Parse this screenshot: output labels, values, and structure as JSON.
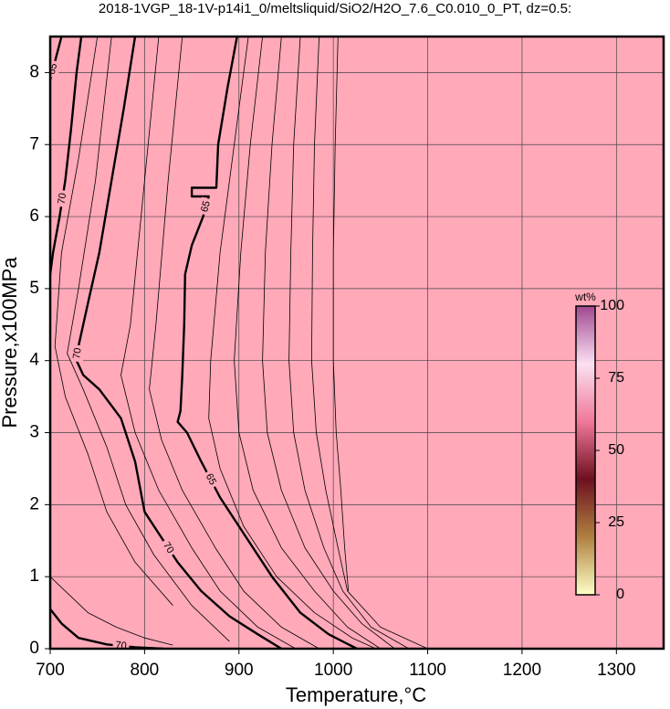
{
  "chart_data": {
    "type": "contour",
    "title": "2018-1VGP_18-1V-p14i1_0/meltsliquid/SiO2/H2O_7.6_C0.010_0_PT, dz=0.5:",
    "x_label": "Temperature,°C",
    "y_label": "Pressure,x100MPa",
    "xlim": [
      700,
      1350
    ],
    "ylim": [
      0,
      8.5
    ],
    "xticks": [
      700,
      800,
      900,
      1000,
      1100,
      1200,
      1300
    ],
    "yticks": [
      0,
      1,
      2,
      3,
      4,
      5,
      6,
      7,
      8
    ],
    "grid": true,
    "fill_color": "#ffa9b9",
    "series": [
      {
        "name": "70",
        "color": "#000000",
        "width": 2.4,
        "x": [
          790,
          778,
          765,
          752,
          740,
          730,
          728,
          735,
          752,
          775,
          790,
          800,
          815,
          835,
          860,
          890,
          920,
          945
        ],
        "y": [
          8.5,
          7.5,
          6.5,
          5.5,
          4.8,
          4.2,
          4.0,
          3.8,
          3.6,
          3.2,
          2.6,
          1.9,
          1.6,
          1.2,
          0.8,
          0.45,
          0.2,
          0
        ]
      },
      {
        "name": "65",
        "color": "#000000",
        "width": 2.4,
        "x": [
          898,
          888,
          878,
          876,
          850,
          850,
          868,
          862,
          850,
          843,
          842,
          840,
          838,
          835,
          845,
          860,
          880,
          905,
          935,
          965,
          995,
          1025
        ],
        "y": [
          8.5,
          7.8,
          7.0,
          6.4,
          6.4,
          6.28,
          6.28,
          6.0,
          5.6,
          5.2,
          4.5,
          3.8,
          3.3,
          3.15,
          3.0,
          2.6,
          2.1,
          1.6,
          1.0,
          0.5,
          0.2,
          0
        ]
      },
      {
        "name": "70",
        "color": "#000000",
        "width": 2.4,
        "x": [
          733,
          728,
          722,
          716,
          710,
          703,
          700
        ],
        "y": [
          8.5,
          8.0,
          7.2,
          6.5,
          6.0,
          5.5,
          5.2
        ]
      },
      {
        "name": "65",
        "color": "#000000",
        "width": 2.4,
        "x": [
          712,
          706,
          700
        ],
        "y": [
          8.5,
          8.2,
          7.9
        ]
      },
      {
        "name": "70",
        "color": "#000000",
        "width": 2.4,
        "x": [
          700,
          712,
          730,
          760,
          790,
          820
        ],
        "y": [
          0.55,
          0.35,
          0.15,
          0.06,
          0.02,
          0
        ]
      },
      {
        "color": "#000000",
        "width": 0.8,
        "x": [
          815,
          800,
          785,
          775,
          790,
          815,
          850,
          880,
          920,
          960
        ],
        "y": [
          8.5,
          6.5,
          4.5,
          3.8,
          3.0,
          2.2,
          1.4,
          0.8,
          0.3,
          0
        ]
      },
      {
        "color": "#000000",
        "width": 0.8,
        "x": [
          840,
          825,
          812,
          805,
          818,
          840,
          875,
          905,
          945,
          985
        ],
        "y": [
          8.5,
          6.5,
          4.5,
          3.6,
          2.9,
          2.2,
          1.4,
          0.8,
          0.3,
          0
        ]
      },
      {
        "color": "#000000",
        "width": 0.8,
        "x": [
          765,
          748,
          730,
          718,
          735,
          760,
          780,
          810,
          850,
          890
        ],
        "y": [
          8.5,
          6.5,
          5,
          4.1,
          3.6,
          2.8,
          2.0,
          1.3,
          0.6,
          0.1
        ]
      },
      {
        "color": "#000000",
        "width": 0.8,
        "x": [
          750,
          730,
          712,
          705,
          716,
          740,
          760,
          790,
          830
        ],
        "y": [
          8.5,
          6.8,
          5.5,
          4.2,
          3.5,
          2.7,
          1.9,
          1.2,
          0.6
        ]
      },
      {
        "color": "#000000",
        "width": 0.8,
        "x": [
          910,
          895,
          880,
          870,
          868,
          880,
          905,
          940,
          980,
          1020,
          1045
        ],
        "y": [
          8.5,
          7,
          5.5,
          4,
          3.2,
          2.5,
          1.7,
          1.0,
          0.5,
          0.15,
          0
        ]
      },
      {
        "color": "#000000",
        "width": 0.8,
        "x": [
          925,
          912,
          902,
          895,
          900,
          915,
          945,
          980,
          1015,
          1050
        ],
        "y": [
          8.5,
          7,
          5.5,
          4,
          3,
          2.2,
          1.4,
          0.8,
          0.3,
          0
        ]
      },
      {
        "color": "#000000",
        "width": 0.8,
        "x": [
          945,
          935,
          928,
          925,
          930,
          945,
          970,
          1000,
          1030,
          1065
        ],
        "y": [
          8.5,
          7,
          5.5,
          4,
          3,
          2.2,
          1.4,
          0.8,
          0.35,
          0
        ]
      },
      {
        "color": "#000000",
        "width": 0.8,
        "x": [
          965,
          958,
          955,
          953,
          958,
          970,
          990,
          1010,
          1040,
          1080
        ],
        "y": [
          8.5,
          7,
          5.5,
          4,
          3,
          2.2,
          1.4,
          0.8,
          0.3,
          0
        ]
      },
      {
        "color": "#000000",
        "width": 0.8,
        "x": [
          985,
          980,
          978,
          977,
          982,
          992,
          1005,
          1015,
          1050,
          1100
        ],
        "y": [
          8.5,
          7,
          5.5,
          4,
          3,
          2.2,
          1.4,
          0.8,
          0.3,
          0
        ]
      },
      {
        "color": "#000000",
        "width": 0.8,
        "x": [
          1005,
          1002,
          1000,
          1000,
          1003,
          1008,
          1012,
          1016
        ],
        "y": [
          8.5,
          7,
          5.5,
          4,
          3,
          2.2,
          1.4,
          0.8
        ]
      },
      {
        "color": "#000000",
        "width": 0.8,
        "x": [
          700,
          740,
          770,
          800,
          830
        ],
        "y": [
          1.0,
          0.5,
          0.3,
          0.15,
          0.05
        ]
      }
    ],
    "colorbar": {
      "label": "wt%",
      "lim": [
        0,
        100
      ],
      "ticks": [
        0,
        25,
        50,
        75,
        100
      ],
      "colors": [
        "#ffffc8",
        "#b08040",
        "#6e1020",
        "#f07898",
        "#fbe0f2",
        "#a04890"
      ]
    }
  }
}
